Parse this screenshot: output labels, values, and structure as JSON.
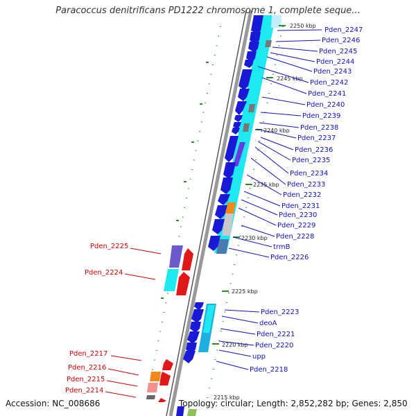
{
  "title": "Paracoccus denitrificans PD1222 chromosome 1, complete seque...",
  "footer": {
    "accession": "Accession: NC_008686",
    "summary": "Topology: circular; Length: 2,852,282 bp; Genes: 2,850"
  },
  "ticks": [
    "2250 kbp",
    "2245 kbp",
    "2240 kbp",
    "2235 kbp",
    "2230 kbp",
    "2225 kbp",
    "2220 kbp",
    "2215 kbp"
  ],
  "labels_right": [
    "Pden_2247",
    "Pden_2246",
    "Pden_2245",
    "Pden_2244",
    "Pden_2243",
    "Pden_2242",
    "Pden_2241",
    "Pden_2240",
    "Pden_2239",
    "Pden_2238",
    "Pden_2237",
    "Pden_2236",
    "Pden_2235",
    "Pden_2234",
    "Pden_2233",
    "Pden_2232",
    "Pden_2231",
    "Pden_2230",
    "Pden_2229",
    "Pden_2228",
    "trmB",
    "Pden_2226",
    "Pden_2223",
    "deoA",
    "Pden_2221",
    "Pden_2220",
    "upp",
    "Pden_2218"
  ],
  "labels_left": [
    "Pden_2225",
    "Pden_2224",
    "Pden_2217",
    "Pden_2216",
    "Pden_2215",
    "Pden_2214"
  ],
  "colors": {
    "forward_arrow": "#1a1ad6",
    "reverse_arrow": "#e01818",
    "cog_cyan": "#1ee8f0",
    "backbone": "#888888",
    "tick_green": "#2a8a2a",
    "label_blue": "#1010c0",
    "label_red": "#d40000"
  }
}
